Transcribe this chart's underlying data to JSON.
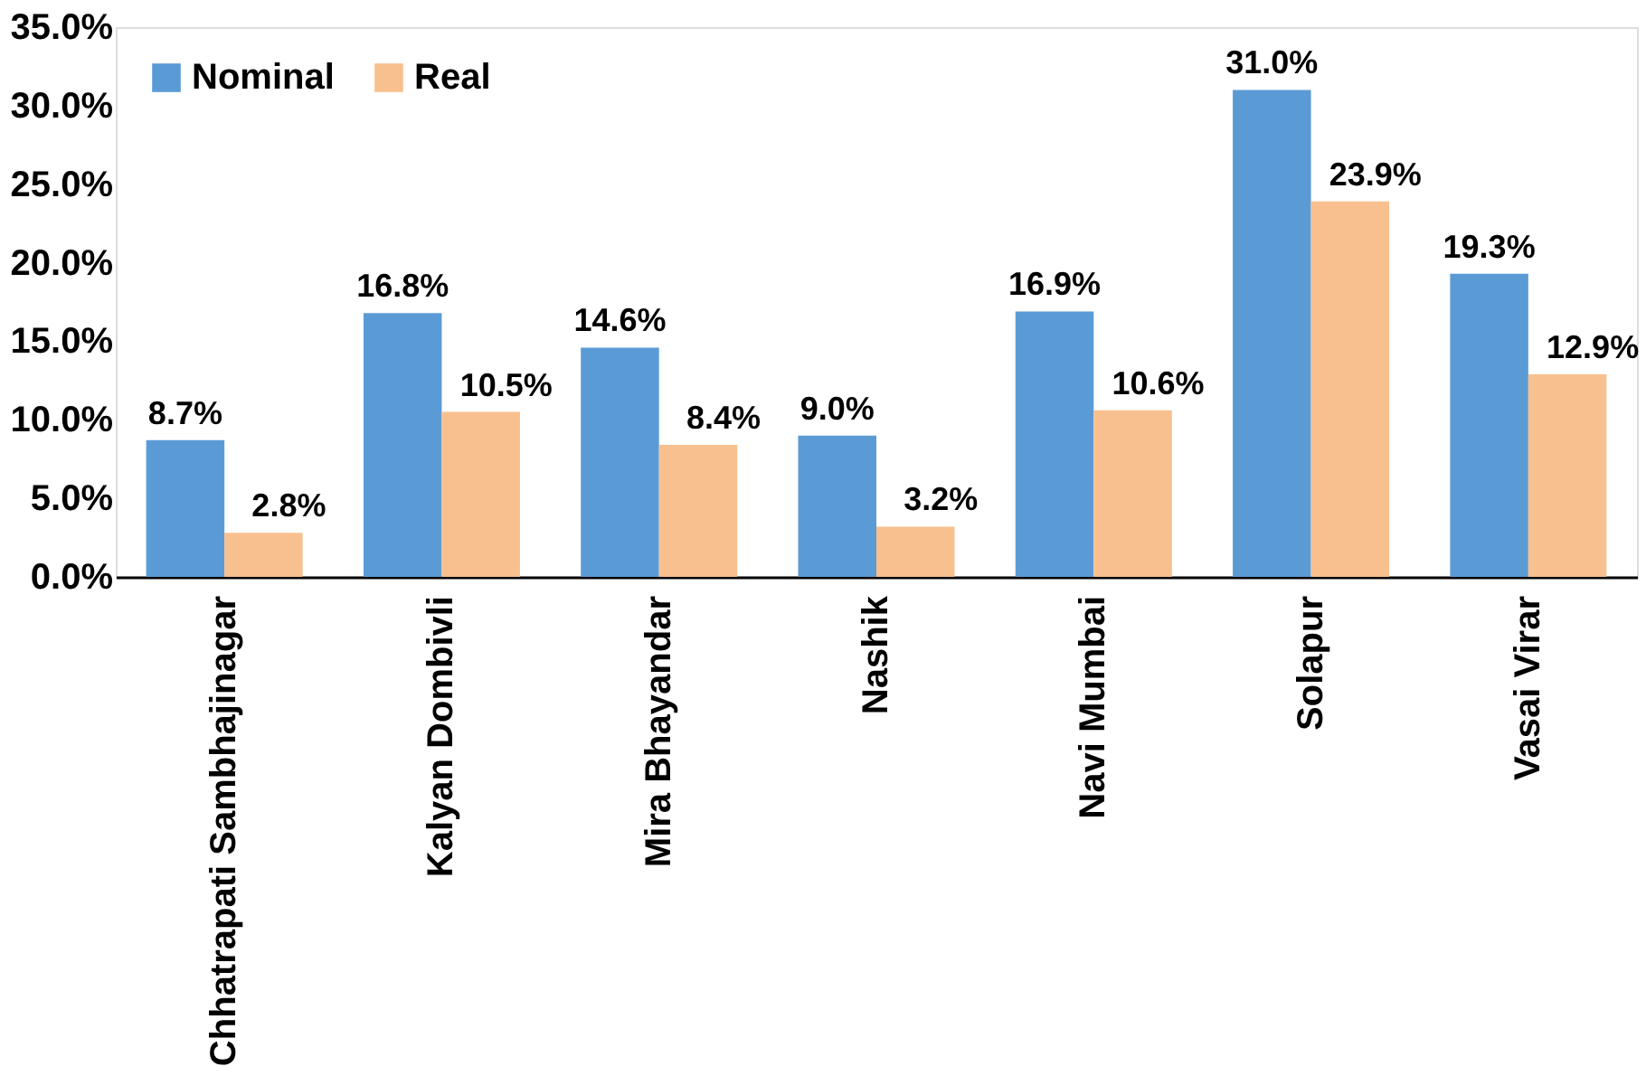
{
  "chart_data": {
    "type": "bar",
    "categories": [
      "Chhatrapati Sambhajinagar",
      "Kalyan Dombivli",
      "Mira Bhayandar",
      "Nashik",
      "Navi Mumbai",
      "Solapur",
      "Vasai Virar"
    ],
    "series": [
      {
        "name": "Nominal",
        "color": "#5b9bd5",
        "values": [
          8.7,
          16.8,
          14.6,
          9.0,
          16.9,
          31.0,
          19.3
        ],
        "value_labels": [
          "8.7%",
          "16.8%",
          "14.6%",
          "9.0%",
          "16.9%",
          "31.0%",
          "19.3%"
        ]
      },
      {
        "name": "Real",
        "color": "#f8c08e",
        "values": [
          2.8,
          10.5,
          8.4,
          3.2,
          10.6,
          23.9,
          12.9
        ],
        "value_labels": [
          "2.8%",
          "10.5%",
          "8.4%",
          "3.2%",
          "10.6%",
          "23.9%",
          "12.9%"
        ]
      }
    ],
    "ylim": [
      0,
      35
    ],
    "yticks": [
      {
        "value": 0,
        "label": "0.0%"
      },
      {
        "value": 5,
        "label": "5.0%"
      },
      {
        "value": 10,
        "label": "10.0%"
      },
      {
        "value": 15,
        "label": "15.0%"
      },
      {
        "value": 20,
        "label": "20.0%"
      },
      {
        "value": 25,
        "label": "25.0%"
      },
      {
        "value": 30,
        "label": "30.0%"
      },
      {
        "value": 35,
        "label": "35.0%"
      }
    ],
    "grid": false,
    "legend": "top left"
  }
}
